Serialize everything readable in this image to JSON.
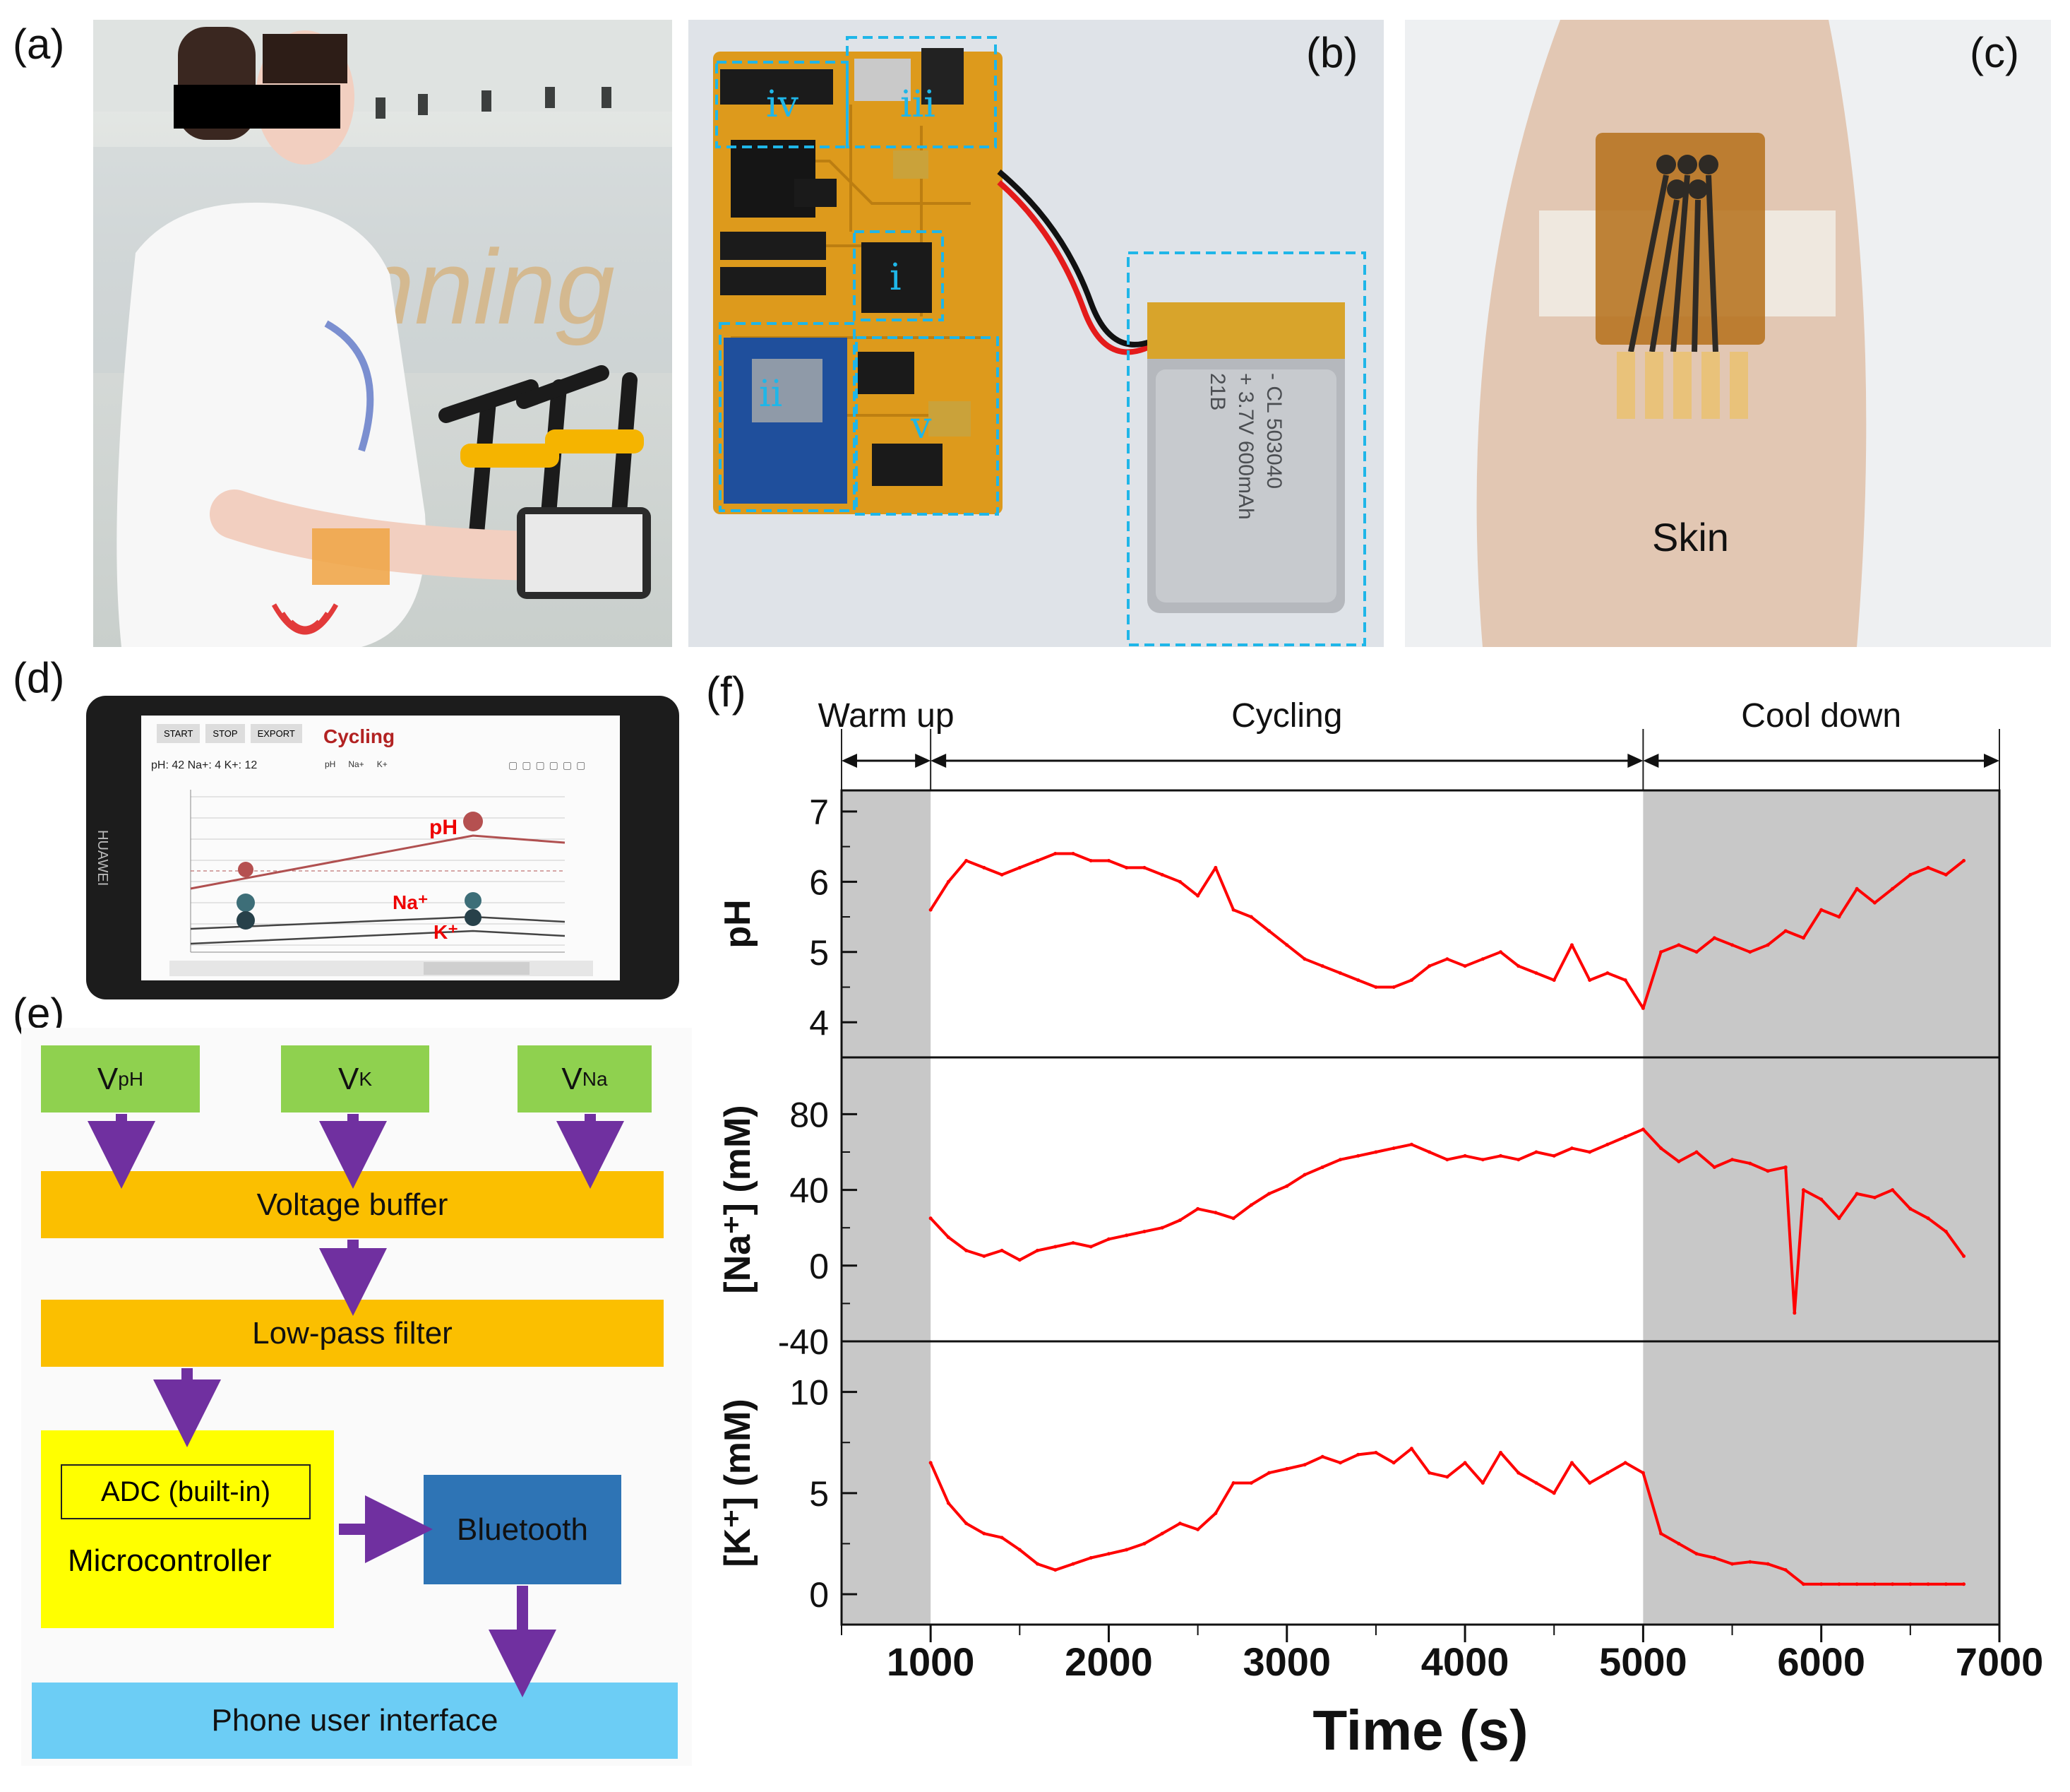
{
  "panels": {
    "a": "(a)",
    "b": "(b)",
    "c": "(c)",
    "d": "(d)",
    "e": "(e)",
    "f": "(f)"
  },
  "photo_b": {
    "regions": [
      "i",
      "ii",
      "iii",
      "iv",
      "v"
    ]
  },
  "photo_c": {
    "skin_label": "Skin"
  },
  "phone": {
    "brand": "HUAWEI",
    "buttons": [
      "START",
      "STOP",
      "EXPORT"
    ],
    "title": "Cycling",
    "readout": "pH: 42  Na+: 4  K+: 12",
    "legend": [
      "pH",
      "Na+",
      "K+"
    ],
    "curve_labels": {
      "ph": "pH",
      "na": "Na⁺",
      "k": "K⁺"
    }
  },
  "flowchart": {
    "inputs": [
      {
        "main": "V",
        "sub": "pH"
      },
      {
        "main": "V",
        "sub": "K"
      },
      {
        "main": "V",
        "sub": "Na"
      }
    ],
    "voltage_buffer": "Voltage buffer",
    "low_pass_filter": "Low-pass filter",
    "adc": "ADC (built-in)",
    "microcontroller": "Microcontroller",
    "bluetooth": "Bluetooth",
    "phone_ui": "Phone user interface"
  },
  "chart_data": {
    "type": "line",
    "phases": [
      {
        "label": "Warm up",
        "start": 500,
        "end": 1000,
        "shaded": true
      },
      {
        "label": "Cycling",
        "start": 1000,
        "end": 5000,
        "shaded": false
      },
      {
        "label": "Cool down",
        "start": 5000,
        "end": 7000,
        "shaded": true
      }
    ],
    "xlabel": "Time (s)",
    "xlim": [
      500,
      7000
    ],
    "xticks": [
      1000,
      2000,
      3000,
      4000,
      5000,
      6000,
      7000
    ],
    "line_color": "#ff0000",
    "shade_color": "#c8c8c8",
    "series": [
      {
        "name": "pH",
        "ylabel": "pH",
        "ylim": [
          3.5,
          7.3
        ],
        "yticks": [
          4,
          5,
          6,
          7
        ],
        "x": [
          1000,
          1100,
          1200,
          1300,
          1400,
          1500,
          1600,
          1700,
          1800,
          1900,
          2000,
          2100,
          2200,
          2300,
          2400,
          2500,
          2600,
          2700,
          2800,
          2900,
          3000,
          3100,
          3200,
          3300,
          3400,
          3500,
          3600,
          3700,
          3800,
          3900,
          4000,
          4100,
          4200,
          4300,
          4400,
          4500,
          4600,
          4700,
          4800,
          4900,
          5000,
          5100,
          5200,
          5300,
          5400,
          5500,
          5600,
          5700,
          5800,
          5900,
          6000,
          6100,
          6200,
          6300,
          6400,
          6500,
          6600,
          6700,
          6800
        ],
        "y": [
          5.6,
          6.0,
          6.3,
          6.2,
          6.1,
          6.2,
          6.3,
          6.4,
          6.4,
          6.3,
          6.3,
          6.2,
          6.2,
          6.1,
          6.0,
          5.8,
          6.2,
          5.6,
          5.5,
          5.3,
          5.1,
          4.9,
          4.8,
          4.7,
          4.6,
          4.5,
          4.5,
          4.6,
          4.8,
          4.9,
          4.8,
          4.9,
          5.0,
          4.8,
          4.7,
          4.6,
          5.1,
          4.6,
          4.7,
          4.6,
          4.2,
          5.0,
          5.1,
          5.0,
          5.2,
          5.1,
          5.0,
          5.1,
          5.3,
          5.2,
          5.6,
          5.5,
          5.9,
          5.7,
          5.9,
          6.1,
          6.2,
          6.1,
          6.3
        ]
      },
      {
        "name": "Na+",
        "ylabel": "[Na⁺] (mM)",
        "ylim": [
          -40,
          110
        ],
        "yticks": [
          -40,
          0,
          40,
          80
        ],
        "x": [
          1000,
          1100,
          1200,
          1300,
          1400,
          1500,
          1600,
          1700,
          1800,
          1900,
          2000,
          2100,
          2200,
          2300,
          2400,
          2500,
          2600,
          2700,
          2800,
          2900,
          3000,
          3100,
          3200,
          3300,
          3400,
          3500,
          3600,
          3700,
          3800,
          3900,
          4000,
          4100,
          4200,
          4300,
          4400,
          4500,
          4600,
          4700,
          4800,
          4900,
          5000,
          5100,
          5200,
          5300,
          5400,
          5500,
          5600,
          5700,
          5800,
          5850,
          5900,
          6000,
          6100,
          6200,
          6300,
          6400,
          6500,
          6600,
          6700,
          6800
        ],
        "y": [
          25,
          15,
          8,
          5,
          8,
          3,
          8,
          10,
          12,
          10,
          14,
          16,
          18,
          20,
          24,
          30,
          28,
          25,
          32,
          38,
          42,
          48,
          52,
          56,
          58,
          60,
          62,
          64,
          60,
          56,
          58,
          56,
          58,
          56,
          60,
          58,
          62,
          60,
          64,
          68,
          72,
          62,
          55,
          60,
          52,
          56,
          54,
          50,
          52,
          -25,
          40,
          35,
          25,
          38,
          36,
          40,
          30,
          25,
          18,
          5
        ]
      },
      {
        "name": "K+",
        "ylabel": "[K⁺] (mM)",
        "ylim": [
          -1.5,
          12.5
        ],
        "yticks": [
          0,
          5,
          10
        ],
        "x": [
          1000,
          1100,
          1200,
          1300,
          1400,
          1500,
          1600,
          1700,
          1800,
          1900,
          2000,
          2100,
          2200,
          2300,
          2400,
          2500,
          2600,
          2700,
          2800,
          2900,
          3000,
          3100,
          3200,
          3300,
          3400,
          3500,
          3600,
          3700,
          3800,
          3900,
          4000,
          4100,
          4200,
          4300,
          4400,
          4500,
          4600,
          4700,
          4800,
          4900,
          5000,
          5100,
          5200,
          5300,
          5400,
          5500,
          5600,
          5700,
          5800,
          5900,
          6000,
          6100,
          6200,
          6300,
          6400,
          6500,
          6600,
          6700,
          6800
        ],
        "y": [
          6.5,
          4.5,
          3.5,
          3.0,
          2.8,
          2.2,
          1.5,
          1.2,
          1.5,
          1.8,
          2.0,
          2.2,
          2.5,
          3.0,
          3.5,
          3.2,
          4.0,
          5.5,
          5.5,
          6.0,
          6.2,
          6.4,
          6.8,
          6.5,
          6.9,
          7.0,
          6.5,
          7.2,
          6.0,
          5.8,
          6.5,
          5.5,
          7.0,
          6.0,
          5.5,
          5.0,
          6.5,
          5.5,
          6.0,
          6.5,
          6.0,
          3.0,
          2.5,
          2.0,
          1.8,
          1.5,
          1.6,
          1.5,
          1.2,
          0.5,
          0.5,
          0.5,
          0.5,
          0.5,
          0.5,
          0.5,
          0.5,
          0.5,
          0.5
        ]
      }
    ]
  }
}
